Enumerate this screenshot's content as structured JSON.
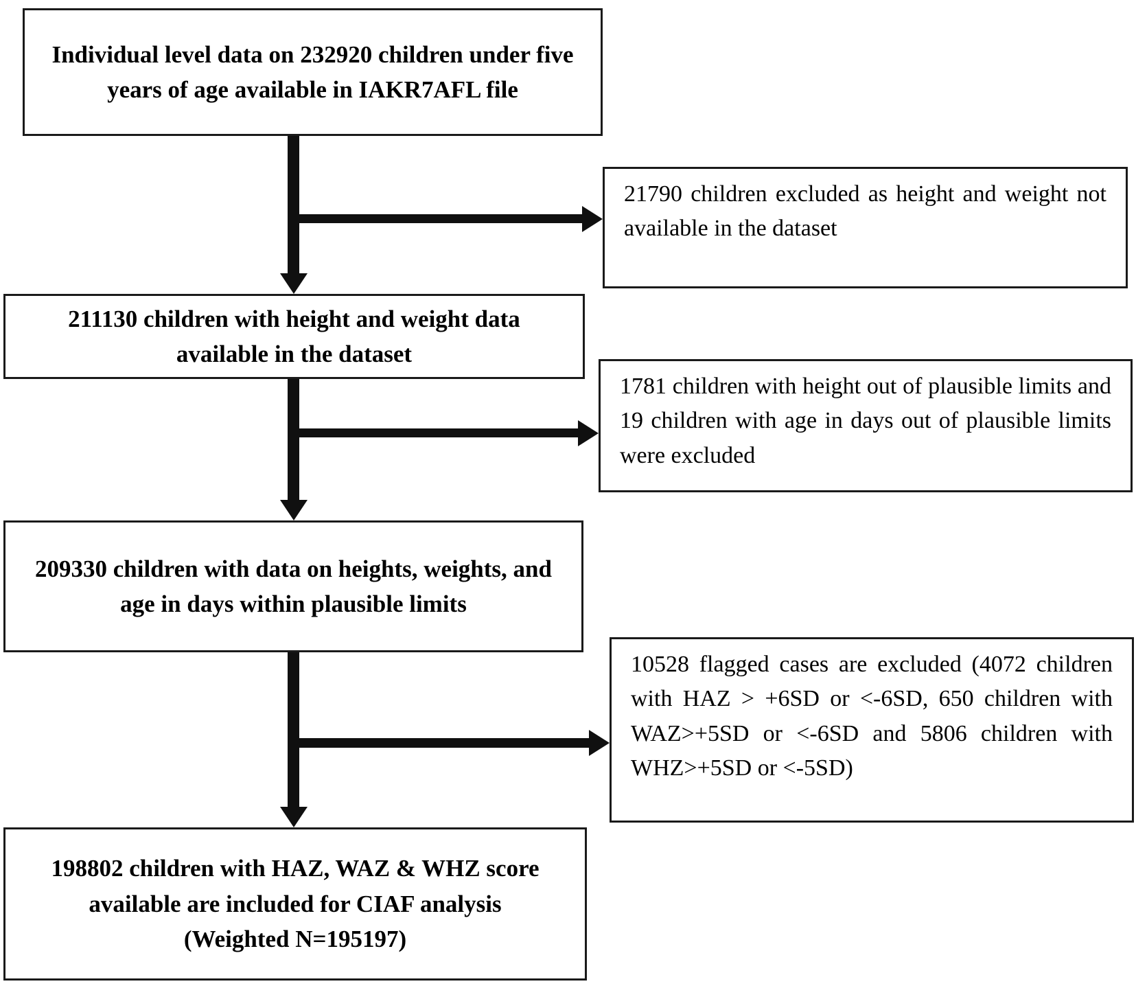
{
  "colors": {
    "background": "#ffffff",
    "box_border": "#1a1a1a",
    "arrow": "#101010",
    "text": "#000000"
  },
  "flowchart": {
    "main_boxes": [
      {
        "id": "source",
        "text": "Individual level data on 232920 children under five years of age available in IAKR7AFL file"
      },
      {
        "id": "height-weight-available",
        "text": "211130 children with height and weight data available in the dataset"
      },
      {
        "id": "plausible-limits",
        "text": "209330 children with data on heights, weights, and age in days within plausible limits"
      },
      {
        "id": "final-analysis",
        "text": "198802 children with HAZ, WAZ & WHZ score available are included for CIAF analysis",
        "note": "(Weighted N=195197)"
      }
    ],
    "exclusion_boxes": [
      {
        "id": "excluded-no-height-weight",
        "text": "21790 children excluded as height and weight not available in the dataset"
      },
      {
        "id": "excluded-implausible",
        "text": "1781 children with height out of plausible limits and 19 children with age in days out of plausible limits were excluded"
      },
      {
        "id": "excluded-flagged",
        "text": "10528 flagged cases are excluded (4072 children with HAZ > +6SD or <-6SD, 650 children with WAZ>+5SD or <-6SD and 5806 children with WHZ>+5SD or <-5SD)"
      }
    ]
  }
}
